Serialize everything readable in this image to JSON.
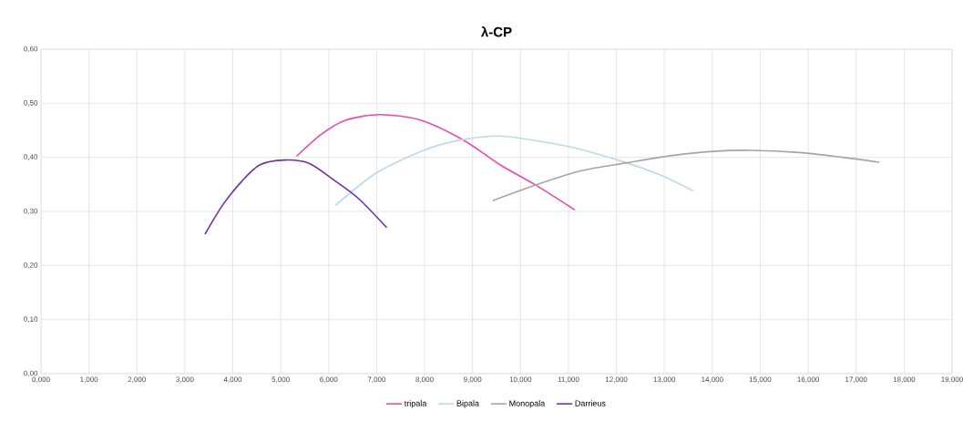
{
  "chart_data": {
    "type": "line",
    "title": "λ-CP",
    "xlim": [
      0,
      19
    ],
    "ylim": [
      0,
      0.6
    ],
    "xticks": [
      {
        "value": 0,
        "label": "0,000"
      },
      {
        "value": 1,
        "label": "1,000"
      },
      {
        "value": 2,
        "label": "2,000"
      },
      {
        "value": 3,
        "label": "3,000"
      },
      {
        "value": 4,
        "label": "4,000"
      },
      {
        "value": 5,
        "label": "5,000"
      },
      {
        "value": 6,
        "label": "6,000"
      },
      {
        "value": 7,
        "label": "7,000"
      },
      {
        "value": 8,
        "label": "8,000"
      },
      {
        "value": 9,
        "label": "9,000"
      },
      {
        "value": 10,
        "label": "10,000"
      },
      {
        "value": 11,
        "label": "11,000"
      },
      {
        "value": 12,
        "label": "12,000"
      },
      {
        "value": 13,
        "label": "13,000"
      },
      {
        "value": 14,
        "label": "14,000"
      },
      {
        "value": 15,
        "label": "15,000"
      },
      {
        "value": 16,
        "label": "16,000"
      },
      {
        "value": 17,
        "label": "17,000"
      },
      {
        "value": 18,
        "label": "18,000"
      },
      {
        "value": 19,
        "label": "19,000"
      }
    ],
    "yticks": [
      {
        "value": 0,
        "label": "0,00"
      },
      {
        "value": 0.1,
        "label": "0,10"
      },
      {
        "value": 0.2,
        "label": "0,20"
      },
      {
        "value": 0.3,
        "label": "0,30"
      },
      {
        "value": 0.4,
        "label": "0,40"
      },
      {
        "value": 0.5,
        "label": "0,50"
      },
      {
        "value": 0.6,
        "label": "0,60"
      }
    ],
    "grid": true,
    "legend": "bottom",
    "marker": "none",
    "line_style": "solid",
    "series": [
      {
        "name": "tripala",
        "color": "#e84bab",
        "x": [
          5.33,
          5.85,
          6.36,
          7.07,
          7.91,
          8.81,
          9.58,
          10.35,
          11.13
        ],
        "values": [
          0.402,
          0.443,
          0.469,
          0.479,
          0.469,
          0.432,
          0.386,
          0.347,
          0.303
        ]
      },
      {
        "name": "Bipala",
        "color": "#bdd7ee",
        "x": [
          6.14,
          7.01,
          8.04,
          8.81,
          9.65,
          11.0,
          12.03,
          12.93,
          13.6
        ],
        "values": [
          0.311,
          0.372,
          0.415,
          0.433,
          0.439,
          0.42,
          0.395,
          0.367,
          0.338
        ]
      },
      {
        "name": "Monopala",
        "color": "#a5a5a5",
        "x": [
          9.42,
          10.29,
          11.25,
          12.22,
          13.12,
          14.02,
          14.79,
          15.82,
          16.72,
          17.48
        ],
        "values": [
          0.32,
          0.348,
          0.375,
          0.39,
          0.403,
          0.411,
          0.413,
          0.409,
          0.4,
          0.391
        ]
      },
      {
        "name": "Darrieus",
        "color": "#7030a0",
        "x": [
          3.42,
          3.79,
          4.18,
          4.56,
          5.08,
          5.59,
          6.11,
          6.62,
          7.21
        ],
        "values": [
          0.258,
          0.312,
          0.355,
          0.386,
          0.395,
          0.389,
          0.358,
          0.324,
          0.27
        ]
      }
    ]
  }
}
